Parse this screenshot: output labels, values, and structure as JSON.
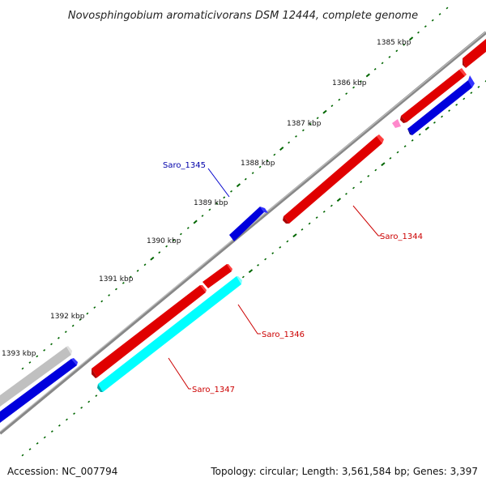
{
  "title": "Novosphingobium aromaticivorans DSM 12444, complete genome",
  "ticks": [
    "1385 kbp",
    "1386 kbp",
    "1387 kbp",
    "1388 kbp",
    "1389 kbp",
    "1390 kbp",
    "1391 kbp",
    "1392 kbp",
    "1393 kbp"
  ],
  "genes": [
    {
      "name": "Saro_1344",
      "color": "#cc0000"
    },
    {
      "name": "Saro_1345",
      "color": "#0000aa"
    },
    {
      "name": "Saro_1346",
      "color": "#cc0000"
    },
    {
      "name": "Saro_1347",
      "color": "#cc0000"
    }
  ],
  "colors": {
    "forward_gene": "#e00000",
    "reverse_gene": "#0000dd",
    "highlight_gene": "#00ffff",
    "other_gene": "#c0c0c0",
    "pink_gene": "#ff88cc",
    "backbone": "#888888",
    "tick": "#006600"
  },
  "footer": {
    "accession": "Accession: NC_007794",
    "stats": "Topology: circular; Length: 3,561,584 bp; Genes: 3,397"
  }
}
